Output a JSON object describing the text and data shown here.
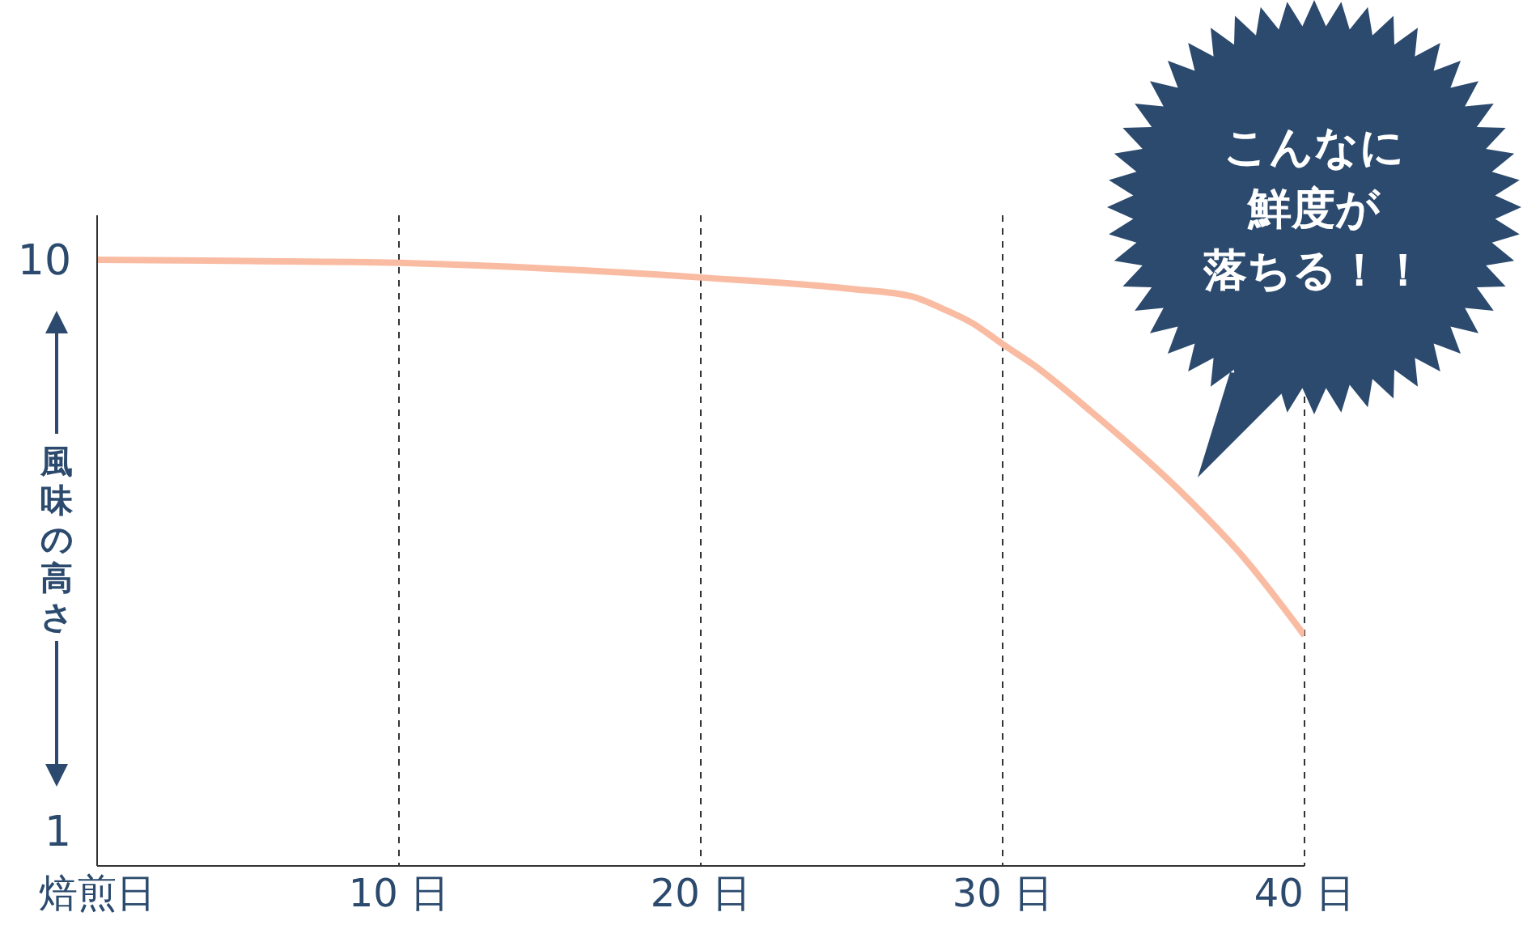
{
  "chart_data": {
    "type": "line",
    "ylabel": "風味の高さ",
    "x": [
      0,
      5,
      10,
      15,
      20,
      25,
      27,
      28,
      29,
      30,
      31,
      33,
      36,
      38,
      40
    ],
    "series": [
      {
        "color": "#f9bca3",
        "values": [
          10,
          9.98,
          9.95,
          9.86,
          9.72,
          9.54,
          9.42,
          9.23,
          9.0,
          8.67,
          8.35,
          7.58,
          6.3,
          5.3,
          4.08
        ]
      }
    ],
    "xlim": [
      0,
      40
    ],
    "xticks": [
      {
        "value": 0,
        "label": "焙煎日"
      },
      {
        "value": 10,
        "label": "10 日"
      },
      {
        "value": 20,
        "label": "20 日"
      },
      {
        "value": 30,
        "label": "30 日"
      },
      {
        "value": 40,
        "label": "40 日"
      }
    ],
    "ylim": [
      0.45,
      10.7
    ],
    "yticks": [
      1,
      10
    ],
    "grid": "x",
    "marker": "none",
    "line_style": "solid",
    "legend": false,
    "annotations": [
      "こんなに",
      "鮮度が",
      "落ちる！！"
    ]
  }
}
